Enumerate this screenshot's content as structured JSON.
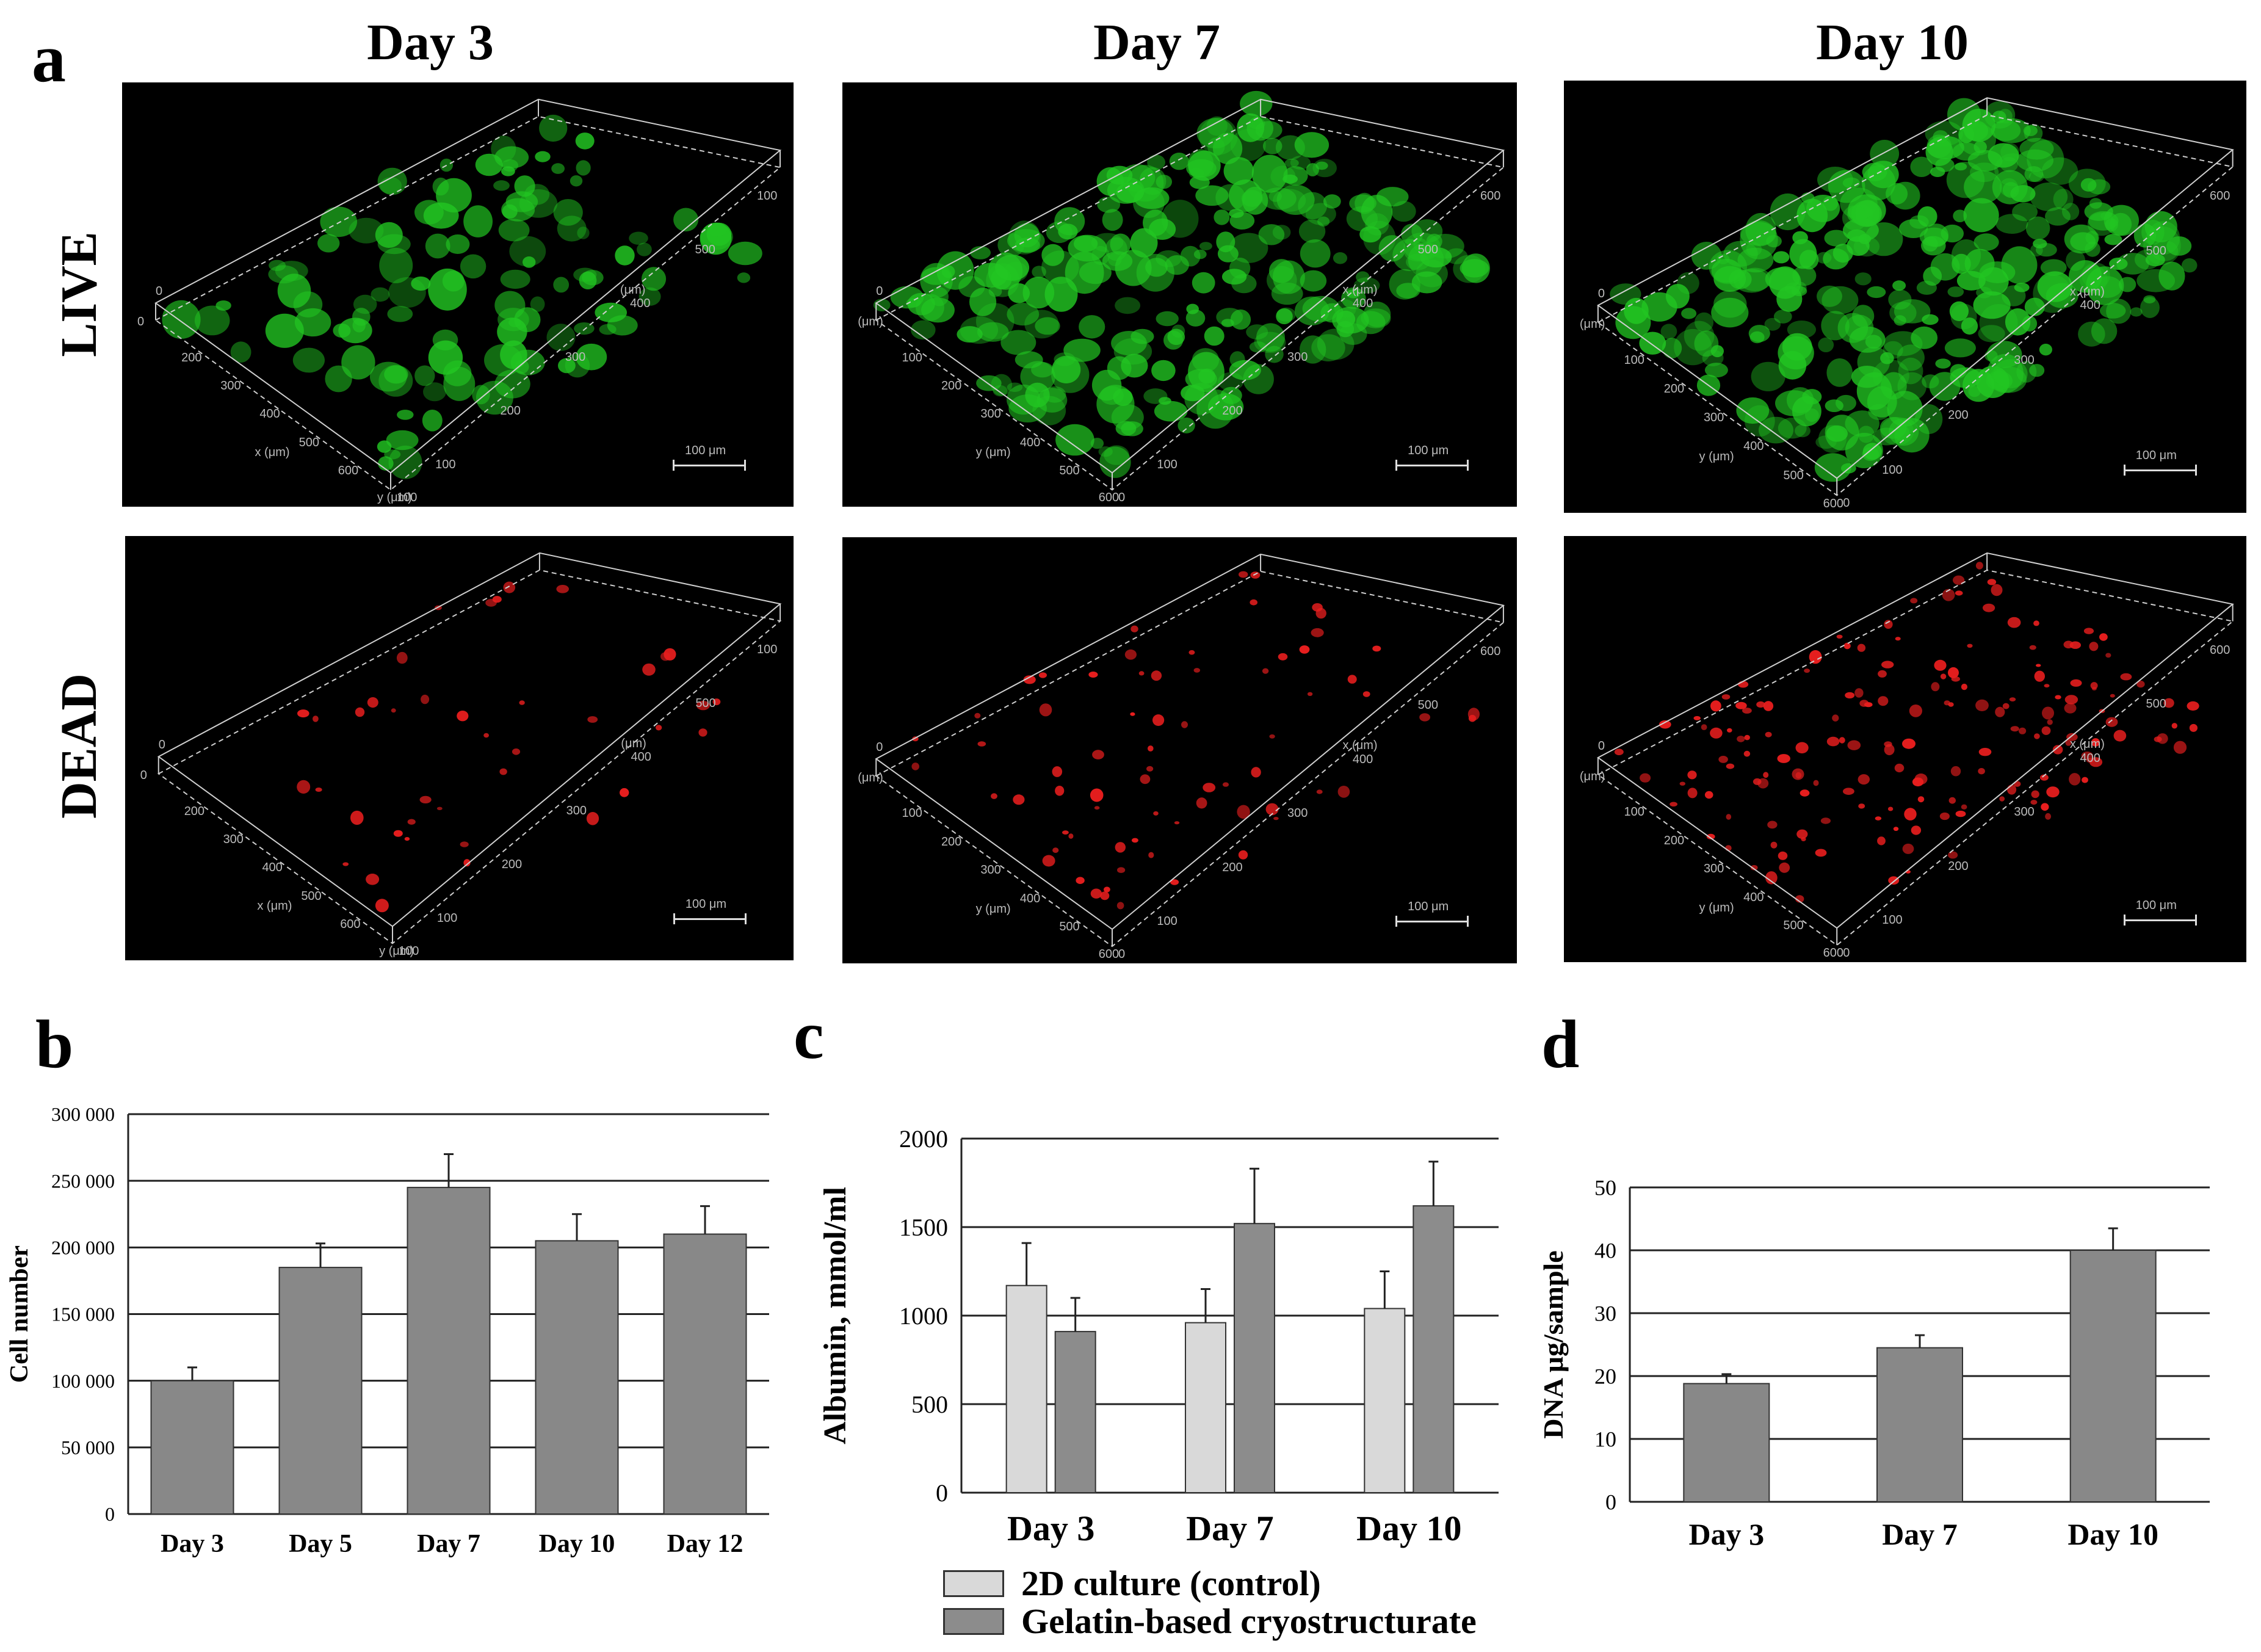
{
  "panel_letters": {
    "a": "a",
    "b": "b",
    "c": "c",
    "d": "d"
  },
  "columns": [
    "Day 3",
    "Day 7",
    "Day 10"
  ],
  "rows": [
    "LIVE",
    "DEAD"
  ],
  "colors": {
    "live": "#22c622",
    "dead": "#e81e1e",
    "bar_gray": "#888888",
    "bar_light": "#d9d9d9",
    "bar_mid": "#8c8c8c"
  },
  "micrographs": [
    {
      "id": "live-day3",
      "scale_label": "100 μm",
      "axis_labels": [
        "100",
        "200",
        "300",
        "400",
        "500",
        "100",
        "200",
        "300",
        "400",
        "500",
        "600",
        "y (μm)",
        "x (μm)",
        "(μm)",
        "0",
        "0",
        "100"
      ]
    },
    {
      "id": "live-day7",
      "scale_label": "100 μm",
      "axis_labels": [
        "100",
        "200",
        "300",
        "400",
        "500",
        "600",
        "100",
        "200",
        "300",
        "400",
        "500",
        "600",
        "y (μm)",
        "x (μm)",
        "(μm)",
        "0",
        "0"
      ]
    },
    {
      "id": "live-day10",
      "scale_label": "100 μm",
      "axis_labels": [
        "100",
        "200",
        "300",
        "400",
        "500",
        "600",
        "100",
        "200",
        "300",
        "400",
        "500",
        "600",
        "y (μm)",
        "x (μm)",
        "(μm)",
        "0",
        "0"
      ]
    },
    {
      "id": "dead-day3",
      "scale_label": "100 μm",
      "axis_labels": [
        "100",
        "200",
        "300",
        "400",
        "500",
        "100",
        "200",
        "300",
        "400",
        "500",
        "600",
        "y (μm)",
        "x (μm)",
        "(μm)",
        "0",
        "0",
        "100"
      ]
    },
    {
      "id": "dead-day7",
      "scale_label": "100 μm",
      "axis_labels": [
        "100",
        "200",
        "300",
        "400",
        "500",
        "600",
        "100",
        "200",
        "300",
        "400",
        "500",
        "600",
        "y (μm)",
        "x (μm)",
        "(μm)",
        "0",
        "0"
      ]
    },
    {
      "id": "dead-day10",
      "scale_label": "100 μm",
      "axis_labels": [
        "100",
        "200",
        "300",
        "400",
        "500",
        "600",
        "100",
        "200",
        "300",
        "400",
        "500",
        "600",
        "y (μm)",
        "x (μm)",
        "(μm)",
        "0",
        "0"
      ]
    }
  ],
  "chart_data": [
    {
      "id": "b",
      "type": "bar",
      "categories": [
        "Day 3",
        "Day 5",
        "Day 7",
        "Day 10",
        "Day 12"
      ],
      "series": [
        {
          "name": "Cell number",
          "values": [
            100000,
            185000,
            245000,
            205000,
            210000
          ],
          "errors": [
            10000,
            18000,
            25000,
            20000,
            21000
          ]
        }
      ],
      "ylabel": "Cell number",
      "ylim": [
        0,
        300000
      ],
      "yticks": [
        0,
        50000,
        100000,
        150000,
        200000,
        250000,
        300000
      ],
      "ytick_labels": [
        "0",
        "50 000",
        "100 000",
        "150 000",
        "200 000",
        "250 000",
        "300 000"
      ],
      "grid": true
    },
    {
      "id": "c",
      "type": "bar",
      "categories": [
        "Day 3",
        "Day 7",
        "Day 10"
      ],
      "series": [
        {
          "name": "2D culture (control)",
          "values": [
            1170,
            960,
            1040
          ],
          "errors": [
            240,
            190,
            210
          ]
        },
        {
          "name": "Gelatin-based cryostructurate",
          "values": [
            910,
            1520,
            1620
          ],
          "errors": [
            190,
            310,
            250
          ]
        }
      ],
      "ylabel": "Albumin, mmol/ml",
      "ylim": [
        0,
        2000
      ],
      "yticks": [
        0,
        500,
        1000,
        1500,
        2000
      ],
      "ytick_labels": [
        "0",
        "500",
        "1000",
        "1500",
        "2000"
      ],
      "legend": "bottom",
      "grid": true
    },
    {
      "id": "d",
      "type": "bar",
      "categories": [
        "Day 3",
        "Day 7",
        "Day 10"
      ],
      "series": [
        {
          "name": "DNA μg/sample",
          "values": [
            18.8,
            24.5,
            40
          ],
          "errors": [
            1.5,
            2.0,
            3.5
          ]
        }
      ],
      "ylabel": "DNA μg/sample",
      "ylim": [
        0,
        50
      ],
      "yticks": [
        0,
        10,
        20,
        30,
        40,
        50
      ],
      "ytick_labels": [
        "0",
        "10",
        "20",
        "30",
        "40",
        "50"
      ],
      "grid": true
    }
  ]
}
